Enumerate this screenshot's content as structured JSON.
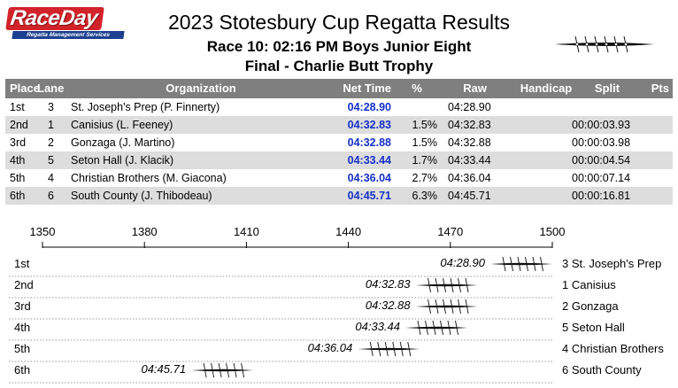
{
  "header": {
    "logo_text": "RaceDay",
    "logo_tagline": "Regatta Management Services",
    "title": "2023 Stotesbury Cup Regatta Results",
    "race_line": "Race 10:  02:16 PM  Boys Junior Eight",
    "final_line": "Final - Charlie Butt Trophy",
    "boat_icon": "eight-rowing-shell-icon"
  },
  "table": {
    "headers": {
      "place": "Place",
      "lane": "Lane",
      "organization": "Organization",
      "net_time": "Net Time",
      "pct": "%",
      "raw": "Raw",
      "handicap": "Handicap",
      "split": "Split",
      "pts": "Pts"
    },
    "rows": [
      {
        "place": "1st",
        "lane": "3",
        "org": "St. Joseph's Prep  (P. Finnerty)",
        "net": "04:28.90",
        "pct": "",
        "raw": "04:28.90",
        "handicap": "",
        "split": "",
        "pts": ""
      },
      {
        "place": "2nd",
        "lane": "1",
        "org": "Canisius  (L. Feeney)",
        "net": "04:32.83",
        "pct": "1.5%",
        "raw": "04:32.83",
        "handicap": "",
        "split": "00:00:03.93",
        "pts": ""
      },
      {
        "place": "3rd",
        "lane": "2",
        "org": "Gonzaga  (J. Martino)",
        "net": "04:32.88",
        "pct": "1.5%",
        "raw": "04:32.88",
        "handicap": "",
        "split": "00:00:03.98",
        "pts": ""
      },
      {
        "place": "4th",
        "lane": "5",
        "org": "Seton Hall  (J. Klacik)",
        "net": "04:33.44",
        "pct": "1.7%",
        "raw": "04:33.44",
        "handicap": "",
        "split": "00:00:04.54",
        "pts": ""
      },
      {
        "place": "5th",
        "lane": "4",
        "org": "Christian Brothers  (M. Giacona)",
        "net": "04:36.04",
        "pct": "2.7%",
        "raw": "04:36.04",
        "handicap": "",
        "split": "00:00:07.14",
        "pts": ""
      },
      {
        "place": "6th",
        "lane": "6",
        "org": "South County  (J. Thibodeau)",
        "net": "04:45.71",
        "pct": "6.3%",
        "raw": "04:45.71",
        "handicap": "",
        "split": "00:00:16.81",
        "pts": ""
      }
    ]
  },
  "chart_data": {
    "type": "scatter",
    "title": "",
    "xlabel": "",
    "ylabel": "",
    "axis_ticks": [
      1350,
      1380,
      1410,
      1440,
      1470,
      1500
    ],
    "xlim": [
      1350,
      1500
    ],
    "marker_icon": "eight-rowing-shell-icon",
    "grid": "dotted lane lines",
    "series": [
      {
        "place": "1st",
        "label": "3 St. Joseph's Prep",
        "time": "04:28.90",
        "position": 1500
      },
      {
        "place": "2nd",
        "label": "1 Canisius",
        "time": "04:32.83",
        "position": 1478
      },
      {
        "place": "3rd",
        "label": "2 Gonzaga",
        "time": "04:32.88",
        "position": 1478
      },
      {
        "place": "4th",
        "label": "5 Seton Hall",
        "time": "04:33.44",
        "position": 1475
      },
      {
        "place": "5th",
        "label": "4 Christian Brothers",
        "time": "04:36.04",
        "position": 1461
      },
      {
        "place": "6th",
        "label": "6 South County",
        "time": "04:45.71",
        "position": 1412
      }
    ]
  }
}
